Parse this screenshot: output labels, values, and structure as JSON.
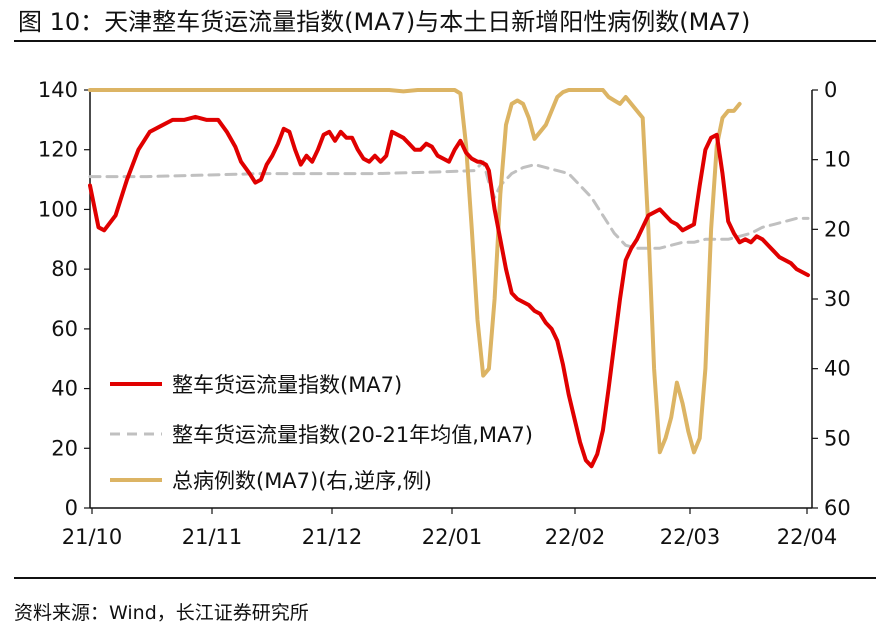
{
  "title": "图 10：天津整车货运流量指数(MA7)与本土日新增阳性病例数(MA7)",
  "source": "资料来源：Wind，长江证券研究所",
  "chart_data": {
    "type": "line",
    "x_tick_labels": [
      "21/10",
      "21/11",
      "21/12",
      "22/01",
      "22/02",
      "22/03",
      "22/04"
    ],
    "left_axis": {
      "range": [
        0,
        140
      ],
      "ticks": [
        "0",
        "20",
        "40",
        "60",
        "80",
        "100",
        "120",
        "140"
      ]
    },
    "right_axis": {
      "range": [
        0,
        60
      ],
      "inverted": true,
      "ticks": [
        "0",
        "10",
        "20",
        "30",
        "40",
        "50",
        "60"
      ]
    },
    "legend_position": "lower-left",
    "grid": false,
    "series": [
      {
        "name": "整车货运流量指数(MA7)",
        "axis": "left",
        "color": "#e00000",
        "style": "solid",
        "points": [
          [
            0,
            108
          ],
          [
            3,
            94
          ],
          [
            5,
            93
          ],
          [
            9,
            98
          ],
          [
            13,
            110
          ],
          [
            17,
            120
          ],
          [
            21,
            126
          ],
          [
            25,
            128
          ],
          [
            29,
            130
          ],
          [
            33,
            130
          ],
          [
            37,
            131
          ],
          [
            41,
            130
          ],
          [
            45,
            130
          ],
          [
            48,
            126
          ],
          [
            51,
            121
          ],
          [
            53,
            116
          ],
          [
            56,
            112
          ],
          [
            58,
            109
          ],
          [
            60,
            110
          ],
          [
            62,
            115
          ],
          [
            64,
            118
          ],
          [
            66,
            122
          ],
          [
            68,
            127
          ],
          [
            70,
            126
          ],
          [
            72,
            120
          ],
          [
            74,
            115
          ],
          [
            76,
            118
          ],
          [
            78,
            116
          ],
          [
            80,
            120
          ],
          [
            82,
            125
          ],
          [
            84,
            126
          ],
          [
            86,
            123
          ],
          [
            88,
            126
          ],
          [
            90,
            124
          ],
          [
            92,
            124
          ],
          [
            94,
            120
          ],
          [
            96,
            117
          ],
          [
            98,
            116
          ],
          [
            100,
            118
          ],
          [
            102,
            116
          ],
          [
            104,
            118
          ],
          [
            106,
            126
          ],
          [
            108,
            125
          ],
          [
            110,
            124
          ],
          [
            112,
            122
          ],
          [
            114,
            120
          ],
          [
            116,
            120
          ],
          [
            118,
            122
          ],
          [
            120,
            121
          ],
          [
            122,
            118
          ],
          [
            124,
            117
          ],
          [
            126,
            116
          ],
          [
            128,
            120
          ],
          [
            130,
            123
          ],
          [
            132,
            119
          ],
          [
            134,
            117
          ],
          [
            136,
            116
          ],
          [
            137,
            116
          ],
          [
            139,
            115
          ],
          [
            140,
            113
          ],
          [
            142,
            100
          ],
          [
            144,
            90
          ],
          [
            146,
            80
          ],
          [
            148,
            72
          ],
          [
            150,
            70
          ],
          [
            152,
            69
          ],
          [
            154,
            68
          ],
          [
            156,
            66
          ],
          [
            158,
            65
          ],
          [
            160,
            62
          ],
          [
            162,
            60
          ],
          [
            164,
            56
          ],
          [
            166,
            48
          ],
          [
            168,
            38
          ],
          [
            170,
            30
          ],
          [
            172,
            22
          ],
          [
            174,
            16
          ],
          [
            176,
            14
          ],
          [
            178,
            18
          ],
          [
            180,
            26
          ],
          [
            182,
            40
          ],
          [
            184,
            55
          ],
          [
            186,
            70
          ],
          [
            188,
            83
          ],
          [
            190,
            87
          ],
          [
            192,
            90
          ],
          [
            194,
            94
          ],
          [
            196,
            98
          ],
          [
            198,
            99
          ],
          [
            200,
            100
          ],
          [
            202,
            98
          ],
          [
            204,
            96
          ],
          [
            206,
            95
          ],
          [
            208,
            93
          ],
          [
            210,
            94
          ],
          [
            212,
            95
          ],
          [
            214,
            108
          ],
          [
            216,
            120
          ],
          [
            218,
            124
          ],
          [
            220,
            125
          ],
          [
            222,
            112
          ],
          [
            224,
            96
          ],
          [
            226,
            92
          ],
          [
            228,
            89
          ],
          [
            230,
            90
          ],
          [
            232,
            89
          ],
          [
            234,
            91
          ],
          [
            236,
            90
          ],
          [
            238,
            88
          ],
          [
            240,
            86
          ],
          [
            242,
            84
          ],
          [
            244,
            83
          ],
          [
            246,
            82
          ],
          [
            248,
            80
          ],
          [
            250,
            79
          ],
          [
            252,
            78
          ]
        ]
      },
      {
        "name": "整车货运流量指数(20-21年均值,MA7)",
        "axis": "left",
        "color": "#c0c0c0",
        "style": "dashed",
        "points": [
          [
            0,
            111
          ],
          [
            20,
            111
          ],
          [
            40,
            111.5
          ],
          [
            60,
            112
          ],
          [
            80,
            112
          ],
          [
            100,
            112
          ],
          [
            120,
            112.5
          ],
          [
            135,
            113
          ],
          [
            138,
            116
          ],
          [
            140,
            109
          ],
          [
            142,
            104
          ],
          [
            144,
            108
          ],
          [
            148,
            112
          ],
          [
            152,
            114
          ],
          [
            156,
            115
          ],
          [
            160,
            114
          ],
          [
            164,
            113
          ],
          [
            168,
            112
          ],
          [
            172,
            108
          ],
          [
            176,
            104
          ],
          [
            180,
            98
          ],
          [
            184,
            92
          ],
          [
            188,
            88
          ],
          [
            192,
            87
          ],
          [
            196,
            87
          ],
          [
            200,
            87
          ],
          [
            204,
            88
          ],
          [
            208,
            89
          ],
          [
            212,
            89
          ],
          [
            216,
            90
          ],
          [
            220,
            90
          ],
          [
            224,
            90
          ],
          [
            228,
            91
          ],
          [
            232,
            92
          ],
          [
            236,
            94
          ],
          [
            240,
            95
          ],
          [
            244,
            96
          ],
          [
            248,
            97
          ],
          [
            252,
            97
          ]
        ]
      },
      {
        "name": "总病例数(MA7)(右,逆序,例)",
        "axis": "right",
        "color": "#dcb464",
        "style": "solid",
        "points": [
          [
            0,
            0
          ],
          [
            20,
            0
          ],
          [
            40,
            0
          ],
          [
            60,
            0
          ],
          [
            80,
            0
          ],
          [
            100,
            0
          ],
          [
            105,
            0
          ],
          [
            110,
            0.2
          ],
          [
            115,
            0
          ],
          [
            120,
            0
          ],
          [
            125,
            0
          ],
          [
            128,
            0
          ],
          [
            130,
            0.5
          ],
          [
            132,
            8
          ],
          [
            134,
            20
          ],
          [
            136,
            33
          ],
          [
            138,
            41
          ],
          [
            140,
            40
          ],
          [
            142,
            30
          ],
          [
            144,
            15
          ],
          [
            146,
            5
          ],
          [
            148,
            2
          ],
          [
            150,
            1.5
          ],
          [
            152,
            2
          ],
          [
            154,
            4
          ],
          [
            156,
            7
          ],
          [
            158,
            6
          ],
          [
            160,
            5
          ],
          [
            162,
            3
          ],
          [
            164,
            1
          ],
          [
            166,
            0.3
          ],
          [
            168,
            0
          ],
          [
            172,
            0
          ],
          [
            178,
            0
          ],
          [
            180,
            0
          ],
          [
            182,
            1
          ],
          [
            184,
            1.5
          ],
          [
            186,
            2
          ],
          [
            188,
            1
          ],
          [
            190,
            2
          ],
          [
            192,
            3
          ],
          [
            194,
            4
          ],
          [
            196,
            20
          ],
          [
            198,
            40
          ],
          [
            200,
            52
          ],
          [
            202,
            50
          ],
          [
            204,
            47
          ],
          [
            206,
            42
          ],
          [
            208,
            45
          ],
          [
            210,
            49
          ],
          [
            212,
            52
          ],
          [
            214,
            50
          ],
          [
            216,
            40
          ],
          [
            218,
            20
          ],
          [
            220,
            8
          ],
          [
            222,
            4
          ],
          [
            224,
            3
          ],
          [
            226,
            3
          ],
          [
            228,
            2
          ]
        ]
      }
    ]
  }
}
